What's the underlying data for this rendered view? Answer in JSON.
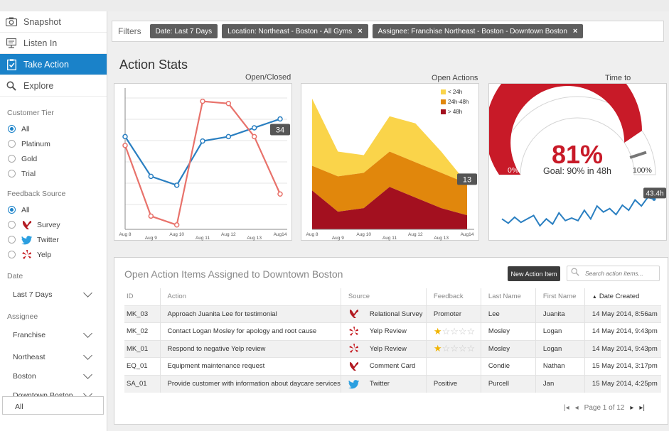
{
  "nav": {
    "items": [
      {
        "label": "Snapshot",
        "icon": "camera-icon"
      },
      {
        "label": "Listen In",
        "icon": "monitor-icon"
      },
      {
        "label": "Take Action",
        "icon": "clipboard-check-icon",
        "active": true
      },
      {
        "label": "Explore",
        "icon": "search-icon"
      }
    ]
  },
  "sidebar": {
    "tier": {
      "title": "Customer Tier",
      "options": [
        "All",
        "Platinum",
        "Gold",
        "Trial"
      ],
      "selected": "All"
    },
    "feedback": {
      "title": "Feedback Source",
      "options": [
        "All",
        "Survey",
        "Twitter",
        "Yelp"
      ],
      "selected": "All"
    },
    "date": {
      "title": "Date",
      "value": "Last 7 Days"
    },
    "assignee": {
      "title": "Assignee",
      "levels": [
        "Franchise",
        "Northeast",
        "Boston",
        "Downtown Boston"
      ]
    },
    "selected_value": "All"
  },
  "filters": {
    "label": "Filters",
    "chips": [
      "Date:  Last 7 Days",
      "Location:  Northeast - Boston - All Gyms",
      "Assignee:  Franchise Northeast - Boston - Downtown Boston"
    ]
  },
  "stats_title": "Action Stats",
  "chart_data": [
    {
      "type": "line",
      "title": "Open/Closed",
      "x": [
        "Aug 8",
        "Aug 9",
        "Aug 10",
        "Aug 11",
        "Aug 12",
        "Aug 13",
        "Aug14"
      ],
      "series": [
        {
          "color": "#2a7fc1",
          "values": [
            30,
            21,
            19,
            29,
            30,
            32,
            34
          ]
        },
        {
          "color": "#e8726b",
          "values": [
            28,
            12,
            10,
            38,
            37.5,
            30,
            17
          ]
        }
      ],
      "ylim": [
        9,
        41
      ],
      "callout": "34",
      "grid": true
    },
    {
      "type": "area",
      "title": "Open Actions",
      "x": [
        "Aug 8",
        "Aug 9",
        "Aug 10",
        "Aug 11",
        "Aug 12",
        "Aug 13",
        "Aug14"
      ],
      "series": [
        {
          "name": "> 48h",
          "color": "#a3101f",
          "values": [
            11,
            5,
            6,
            12,
            9,
            6,
            4
          ]
        },
        {
          "name": "24h-48h",
          "color": "#e1870c",
          "values": [
            7,
            10,
            10,
            10,
            10,
            10,
            9
          ]
        },
        {
          "name": "< 24h",
          "color": "#fad44a",
          "values": [
            19,
            7,
            5,
            10,
            11,
            6,
            0
          ]
        }
      ],
      "ylim": [
        0,
        40
      ],
      "callout": "13",
      "legend": "top-right"
    },
    {
      "type": "gauge",
      "title": "Time to Resolution",
      "value_pct": 81,
      "value_label": "81%",
      "goal_label": "Goal: 90% in 48h",
      "min_label": "0%",
      "max_label": "100%",
      "goal_pct": 90,
      "trend": [
        20,
        15,
        22,
        16,
        20,
        24,
        12,
        20,
        14,
        27,
        18,
        21,
        18,
        30,
        20,
        35,
        28,
        32,
        25,
        36,
        30,
        42,
        35,
        45,
        43
      ],
      "trend_callout": "43.4h"
    }
  ],
  "colors": {
    "accent": "#1a82c9",
    "dark_red": "#a3101f",
    "orange": "#e1870c",
    "yellow": "#fad44a",
    "gauge_red": "#c81a28"
  },
  "table": {
    "title": "Open Action Items Assigned to Downtown Boston",
    "new_button": "New Action Item",
    "search_placeholder": "Search action items...",
    "columns": [
      "ID",
      "Action",
      "Source",
      "Feedback",
      "Last Name",
      "First Name",
      "Date Created"
    ],
    "rows": [
      {
        "id": "MK_03",
        "action": "Approach Juanita Lee for testimonial",
        "source_icon": "survey-icon",
        "source": "Relational Survey",
        "feedback": "Promoter",
        "stars": 0,
        "last": "Lee",
        "first": "Juanita",
        "date": "14 May 2014, 8:56am"
      },
      {
        "id": "MK_02",
        "action": "Contact Logan Mosley for apology and root cause",
        "source_icon": "yelp-icon",
        "source": "Yelp Review",
        "feedback": "",
        "stars": 1,
        "last": "Mosley",
        "first": "Logan",
        "date": "14 May 2014, 9:43pm"
      },
      {
        "id": "MK_01",
        "action": "Respond to negative Yelp review",
        "source_icon": "yelp-icon",
        "source": "Yelp Review",
        "feedback": "",
        "stars": 1,
        "last": "Mosley",
        "first": "Logan",
        "date": "14 May 2014, 9:43pm"
      },
      {
        "id": "EQ_01",
        "action": "Equipment maintenance request",
        "source_icon": "survey-icon",
        "source": "Comment Card",
        "feedback": "",
        "stars": 0,
        "last": "Condie",
        "first": "Nathan",
        "date": "15 May 2014, 3:17pm"
      },
      {
        "id": "SA_01",
        "action": "Provide customer with information about daycare services",
        "source_icon": "twitter-icon",
        "source": "Twitter",
        "feedback": "Positive",
        "stars": 0,
        "last": "Purcell",
        "first": "Jan",
        "date": "15 May 2014, 4:25pm"
      }
    ],
    "pager": "Page 1 of 12"
  }
}
